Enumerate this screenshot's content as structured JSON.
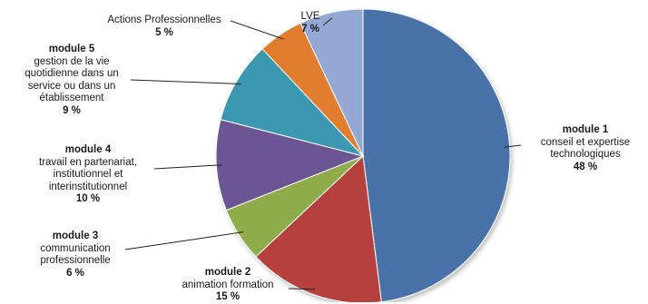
{
  "chart_data": {
    "type": "pie",
    "title": "",
    "slices": [
      {
        "title": "module 1",
        "desc": [
          "conseil et expertise",
          "technologiques"
        ],
        "label": "48 %",
        "value": 48,
        "color": "#4a73a8"
      },
      {
        "title": "module 2",
        "desc": [
          "animation formation"
        ],
        "label": "15 %",
        "value": 15,
        "color": "#b5413d"
      },
      {
        "title": "module 3",
        "desc": [
          "communication",
          "professionnelle"
        ],
        "label": "6 %",
        "value": 6,
        "color": "#8fac4b"
      },
      {
        "title": "module 4",
        "desc": [
          "travail en partenariat,",
          "institutionnel et",
          "interinstitutionnel"
        ],
        "label": "10 %",
        "value": 10,
        "color": "#6c5493"
      },
      {
        "title": "module 5",
        "desc": [
          "gestion de la vie",
          "quotidienne dans un",
          "service ou dans un",
          "établissement"
        ],
        "label": "9 %",
        "value": 9,
        "color": "#3a98b0"
      },
      {
        "title": "",
        "desc": [
          "Actions Professionnelles"
        ],
        "label": "5 %",
        "value": 5,
        "color": "#e07d2e"
      },
      {
        "title": "",
        "desc": [
          "LVE"
        ],
        "label": "7 %",
        "value": 7,
        "color": "#93a9d3"
      }
    ]
  }
}
